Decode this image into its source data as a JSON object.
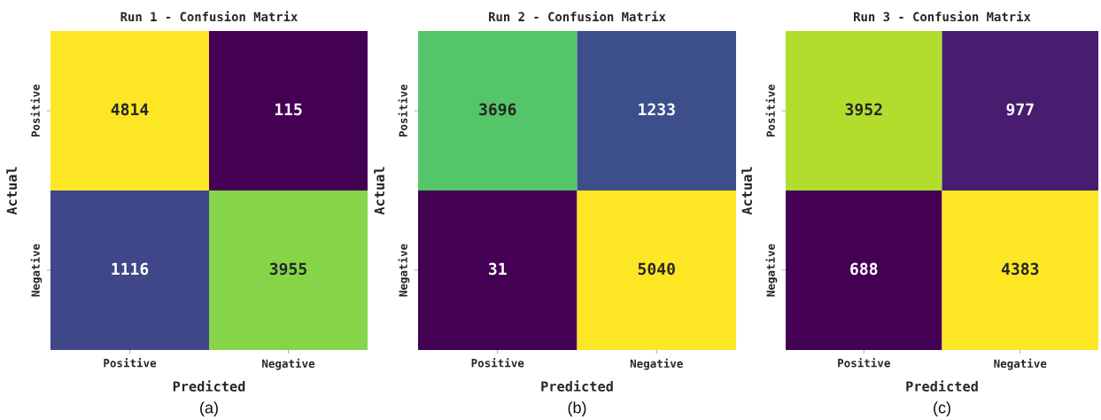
{
  "chart_data": [
    {
      "type": "heatmap",
      "title": "Run 1 - Confusion Matrix",
      "xlabel": "Predicted",
      "ylabel": "Actual",
      "categories": [
        "Positive",
        "Negative"
      ],
      "y_categories": [
        "Positive",
        "Negative"
      ],
      "cells": [
        [
          4814,
          115
        ],
        [
          1116,
          3955
        ]
      ],
      "data_labels": true,
      "annotations": [
        "(a)"
      ]
    },
    {
      "type": "heatmap",
      "title": "Run 2 - Confusion Matrix",
      "xlabel": "Predicted",
      "ylabel": "Actual",
      "categories": [
        "Positive",
        "Negative"
      ],
      "y_categories": [
        "Positive",
        "Negative"
      ],
      "cells": [
        [
          3696,
          1233
        ],
        [
          31,
          5040
        ]
      ],
      "data_labels": true,
      "annotations": [
        "(b)"
      ]
    },
    {
      "type": "heatmap",
      "title": "Run 3 - Confusion Matrix",
      "xlabel": "Predicted",
      "ylabel": "Actual",
      "categories": [
        "Positive",
        "Negative"
      ],
      "y_categories": [
        "Positive",
        "Negative"
      ],
      "cells": [
        [
          3952,
          977
        ],
        [
          688,
          4383
        ]
      ],
      "data_labels": true,
      "annotations": [
        "(c)"
      ]
    }
  ]
}
